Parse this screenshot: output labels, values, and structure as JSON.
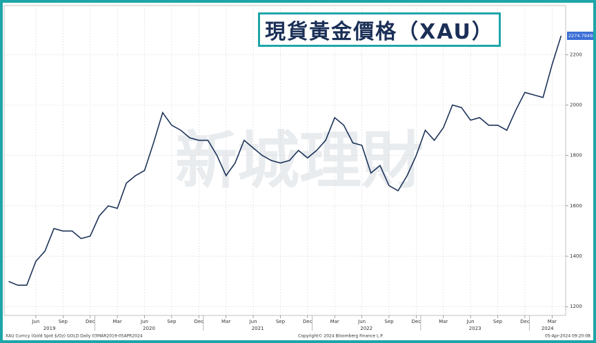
{
  "chart_data": {
    "type": "line",
    "title": "現貨黃金價格（XAU）",
    "watermark": "新城理財",
    "footer_left": "XAU Curncy (Gold Spot  $/Oz) GOLD  Daily 03MAR2019-05APR2024",
    "footer_center": "Copyright© 2024 Bloomberg Finance L.P.",
    "footer_right": "05-Apr-2024 09:20:08",
    "categories": [
      null,
      null,
      null,
      "Jun",
      null,
      null,
      "Sep",
      null,
      null,
      "Dec",
      null,
      null,
      "Mar",
      null,
      null,
      "Jun",
      null,
      null,
      "Sep",
      null,
      null,
      "Dec",
      null,
      null,
      "Mar",
      null,
      null,
      "Jun",
      null,
      null,
      "Sep",
      null,
      null,
      "Dec",
      null,
      null,
      "Mar",
      null,
      null,
      "Jun",
      null,
      null,
      "Sep",
      null,
      null,
      "Dec",
      null,
      null,
      "Mar",
      null,
      null,
      "Jun",
      null,
      null,
      "Sep",
      null,
      null,
      "Dec",
      null,
      null,
      "Mar",
      null
    ],
    "years": [
      "2019",
      "2020",
      "2021",
      "2022",
      "2023",
      "2024"
    ],
    "series": [
      {
        "color": "#1c3358",
        "values": [
          1300,
          1285,
          1285,
          1380,
          1420,
          1510,
          1500,
          1500,
          1470,
          1480,
          1560,
          1600,
          1590,
          1690,
          1720,
          1740,
          1850,
          1970,
          1920,
          1900,
          1870,
          1860,
          1860,
          1800,
          1720,
          1770,
          1860,
          1830,
          1800,
          1780,
          1770,
          1780,
          1820,
          1790,
          1820,
          1860,
          1950,
          1920,
          1850,
          1840,
          1730,
          1760,
          1680,
          1660,
          1720,
          1800,
          1900,
          1860,
          1910,
          2000,
          1990,
          1940,
          1950,
          1920,
          1920,
          1900,
          1980,
          2050,
          2040,
          2030,
          2160,
          2274.79492
        ]
      }
    ],
    "ylim": [
      1165,
      2395
    ],
    "yticks": [
      1200,
      1400,
      1600,
      1800,
      2000,
      2200
    ],
    "grid": true
  }
}
